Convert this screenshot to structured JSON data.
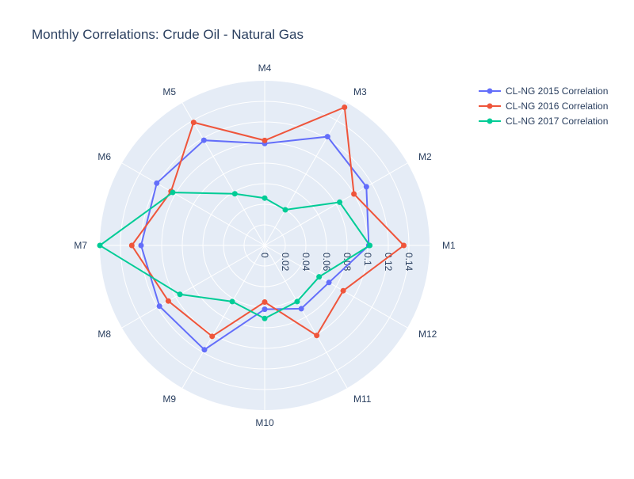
{
  "chart_data": {
    "type": "line",
    "subtype": "polar",
    "title": "Monthly Correlations: Crude Oil - Natural Gas",
    "categories": [
      "M1",
      "M2",
      "M3",
      "M4",
      "M5",
      "M6",
      "M7",
      "M8",
      "M9",
      "M10",
      "M11",
      "M12"
    ],
    "radial_range": [
      0,
      0.16
    ],
    "radial_ticks": [
      "0",
      "0.02",
      "0.04",
      "0.06",
      "0.08",
      "0.1",
      "0.12",
      "0.14"
    ],
    "radial_tick_values": [
      0,
      0.02,
      0.04,
      0.06,
      0.08,
      0.1,
      0.12,
      0.14
    ],
    "angular_direction": "counterclockwise",
    "angular_rotation_deg": 0,
    "grid": true,
    "legend_position": "top-right",
    "series": [
      {
        "name": "CL-NG 2015 Correlation",
        "color": "#636efa",
        "values": [
          0.101,
          0.114,
          0.122,
          0.099,
          0.118,
          0.121,
          0.12,
          0.118,
          0.117,
          0.062,
          0.071,
          0.072
        ]
      },
      {
        "name": "CL-NG 2016 Correlation",
        "color": "#ef553b",
        "values": [
          0.135,
          0.1,
          0.155,
          0.102,
          0.138,
          0.105,
          0.129,
          0.108,
          0.102,
          0.055,
          0.101,
          0.088
        ]
      },
      {
        "name": "CL-NG 2017 Correlation",
        "color": "#00cc96",
        "values": [
          0.102,
          0.084,
          0.04,
          0.046,
          0.058,
          0.103,
          0.16,
          0.095,
          0.063,
          0.071,
          0.063,
          0.061
        ]
      }
    ]
  }
}
